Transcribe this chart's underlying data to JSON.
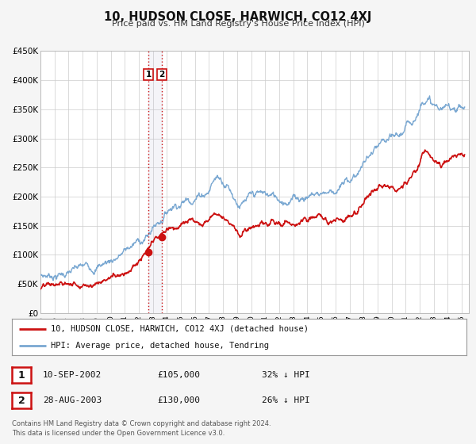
{
  "title": "10, HUDSON CLOSE, HARWICH, CO12 4XJ",
  "subtitle": "Price paid vs. HM Land Registry's House Price Index (HPI)",
  "ylim": [
    0,
    450000
  ],
  "yticks": [
    0,
    50000,
    100000,
    150000,
    200000,
    250000,
    300000,
    350000,
    400000,
    450000
  ],
  "ytick_labels": [
    "£0",
    "£50K",
    "£100K",
    "£150K",
    "£200K",
    "£250K",
    "£300K",
    "£350K",
    "£400K",
    "£450K"
  ],
  "xlim_start": 1995.0,
  "xlim_end": 2025.5,
  "xtick_years": [
    1995,
    1996,
    1997,
    1998,
    1999,
    2000,
    2001,
    2002,
    2003,
    2004,
    2005,
    2006,
    2007,
    2008,
    2009,
    2010,
    2011,
    2012,
    2013,
    2014,
    2015,
    2016,
    2017,
    2018,
    2019,
    2020,
    2021,
    2022,
    2023,
    2024,
    2025
  ],
  "hpi_color": "#7aa8d2",
  "price_color": "#cc1111",
  "sale1_date_x": 2002.69,
  "sale1_price": 105000,
  "sale2_date_x": 2003.65,
  "sale2_price": 130000,
  "vspan_alpha": 0.12,
  "legend_line1": "10, HUDSON CLOSE, HARWICH, CO12 4XJ (detached house)",
  "legend_line2": "HPI: Average price, detached house, Tendring",
  "table_rows": [
    {
      "num": "1",
      "date": "10-SEP-2002",
      "price": "£105,000",
      "hpi": "32% ↓ HPI"
    },
    {
      "num": "2",
      "date": "28-AUG-2003",
      "price": "£130,000",
      "hpi": "26% ↓ HPI"
    }
  ],
  "footnote1": "Contains HM Land Registry data © Crown copyright and database right 2024.",
  "footnote2": "This data is licensed under the Open Government Licence v3.0.",
  "background_color": "#f5f5f5",
  "plot_bg_color": "#ffffff",
  "grid_color": "#cccccc"
}
